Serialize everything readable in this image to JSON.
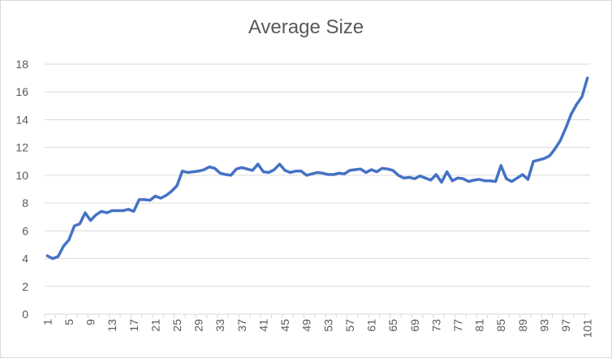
{
  "chart_data": {
    "type": "line",
    "title": "Average Size",
    "xlabel": "",
    "ylabel": "",
    "ylim": [
      0,
      18
    ],
    "y_ticks": [
      0,
      2,
      4,
      6,
      8,
      10,
      12,
      14,
      16,
      18
    ],
    "x_tick_labels": [
      "1",
      "5",
      "9",
      "13",
      "17",
      "21",
      "25",
      "29",
      "33",
      "37",
      "41",
      "45",
      "49",
      "53",
      "57",
      "61",
      "65",
      "69",
      "73",
      "77",
      "81",
      "85",
      "89",
      "93",
      "97",
      "101"
    ],
    "x_tick_values": [
      1,
      5,
      9,
      13,
      17,
      21,
      25,
      29,
      33,
      37,
      41,
      45,
      49,
      53,
      57,
      61,
      65,
      69,
      73,
      77,
      81,
      85,
      89,
      93,
      97,
      101
    ],
    "x_minor_tick_values": [
      3,
      7,
      11,
      15,
      19,
      23,
      27,
      31,
      35,
      39,
      43,
      47,
      51,
      55,
      59,
      63,
      67,
      71,
      75,
      79,
      83,
      87,
      91,
      95,
      99
    ],
    "x_range": [
      1,
      101
    ],
    "grid": "horizontal",
    "legend": "none",
    "line_color": "#4472c4",
    "series": [
      {
        "x": [
          1,
          2,
          3,
          4,
          5,
          6,
          7,
          8,
          9,
          10,
          11,
          12,
          13,
          14,
          15,
          16,
          17,
          18,
          19,
          20,
          21,
          22,
          23,
          24,
          25,
          26,
          27,
          28,
          29,
          30,
          31,
          32,
          33,
          34,
          35,
          36,
          37,
          38,
          39,
          40,
          41,
          42,
          43,
          44,
          45,
          46,
          47,
          48,
          49,
          50,
          51,
          52,
          53,
          54,
          55,
          56,
          57,
          58,
          59,
          60,
          61,
          62,
          63,
          64,
          65,
          66,
          67,
          68,
          69,
          70,
          71,
          72,
          73,
          74,
          75,
          76,
          77,
          78,
          79,
          80,
          81,
          82,
          83,
          84,
          85,
          86,
          87,
          88,
          89,
          90,
          91,
          92,
          93,
          94,
          95,
          96,
          97,
          98,
          99,
          100,
          101
        ],
        "values": [
          4.2,
          4.0,
          4.15,
          4.9,
          5.35,
          6.35,
          6.5,
          7.3,
          6.75,
          7.15,
          7.4,
          7.3,
          7.45,
          7.45,
          7.45,
          7.55,
          7.4,
          8.25,
          8.25,
          8.2,
          8.5,
          8.35,
          8.55,
          8.85,
          9.25,
          10.3,
          10.2,
          10.25,
          10.3,
          10.4,
          10.6,
          10.5,
          10.15,
          10.05,
          10.0,
          10.45,
          10.55,
          10.45,
          10.35,
          10.8,
          10.25,
          10.2,
          10.4,
          10.8,
          10.35,
          10.2,
          10.3,
          10.3,
          10.0,
          10.1,
          10.2,
          10.15,
          10.05,
          10.05,
          10.15,
          10.1,
          10.35,
          10.4,
          10.45,
          10.2,
          10.4,
          10.25,
          10.5,
          10.45,
          10.35,
          10.0,
          9.8,
          9.85,
          9.75,
          9.95,
          9.8,
          9.65,
          10.05,
          9.5,
          10.25,
          9.6,
          9.8,
          9.75,
          9.55,
          9.65,
          9.7,
          9.6,
          9.6,
          9.55,
          10.7,
          9.75,
          9.55,
          9.8,
          10.05,
          9.7,
          11.0,
          11.1,
          11.2,
          11.4,
          11.9,
          12.5,
          13.4,
          14.4,
          15.1,
          15.65,
          17.0
        ]
      }
    ]
  }
}
